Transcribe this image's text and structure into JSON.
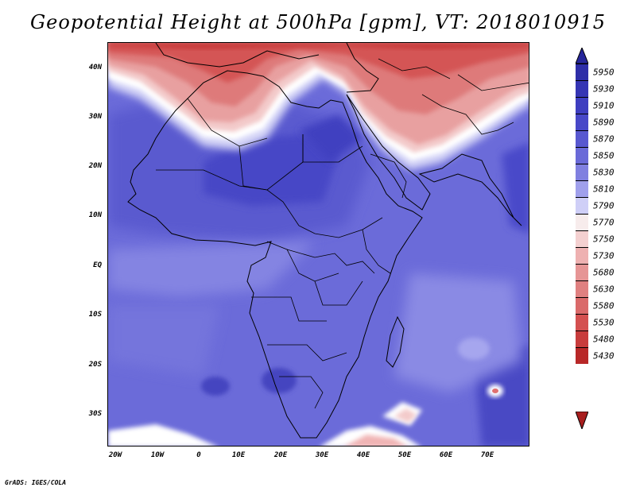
{
  "title": "Geopotential Height at 500hPa [gpm], VT: 2018010915",
  "credit": "GrADS: IGES/COLA",
  "map": {
    "projection": "latlon",
    "lon_range": [
      -23,
      80
    ],
    "lat_range": [
      -36,
      45
    ],
    "lat_ticks": [
      {
        "value": 40,
        "label": "40N"
      },
      {
        "value": 30,
        "label": "30N"
      },
      {
        "value": 20,
        "label": "20N"
      },
      {
        "value": 10,
        "label": "10N"
      },
      {
        "value": 0,
        "label": "EQ"
      },
      {
        "value": -10,
        "label": "10S"
      },
      {
        "value": -20,
        "label": "20S"
      },
      {
        "value": -30,
        "label": "30S"
      }
    ],
    "lon_ticks": [
      {
        "value": -20,
        "label": "20W"
      },
      {
        "value": -10,
        "label": "10W"
      },
      {
        "value": 0,
        "label": "0"
      },
      {
        "value": 10,
        "label": "10E"
      },
      {
        "value": 20,
        "label": "20E"
      },
      {
        "value": 30,
        "label": "30E"
      },
      {
        "value": 40,
        "label": "40E"
      },
      {
        "value": 50,
        "label": "50E"
      },
      {
        "value": 60,
        "label": "60E"
      },
      {
        "value": 70,
        "label": "70E"
      }
    ],
    "background_color": "#6b6bd9"
  },
  "colorbar": {
    "levels": [
      {
        "label": "5950",
        "color": "#2e2ea8"
      },
      {
        "label": "5930",
        "color": "#3535b4"
      },
      {
        "label": "5910",
        "color": "#3e3ec0"
      },
      {
        "label": "5890",
        "color": "#4848c8"
      },
      {
        "label": "5870",
        "color": "#5858d0"
      },
      {
        "label": "5850",
        "color": "#6a6ad8"
      },
      {
        "label": "5830",
        "color": "#8080e0"
      },
      {
        "label": "5810",
        "color": "#a0a0ec"
      },
      {
        "label": "5790",
        "color": "#cfcff7"
      },
      {
        "label": "5770",
        "color": "#f7ecec"
      },
      {
        "label": "5750",
        "color": "#f4d0d0"
      },
      {
        "label": "5730",
        "color": "#eeb1b1"
      },
      {
        "label": "5680",
        "color": "#e69595"
      },
      {
        "label": "5630",
        "color": "#e08080"
      },
      {
        "label": "5580",
        "color": "#da6a6a"
      },
      {
        "label": "5530",
        "color": "#d45050"
      },
      {
        "label": "5480",
        "color": "#c83c3c"
      },
      {
        "label": "5430",
        "color": "#b82828"
      }
    ],
    "top_arrow_color": "#26269a",
    "bottom_arrow_color": "#a81e1e"
  }
}
